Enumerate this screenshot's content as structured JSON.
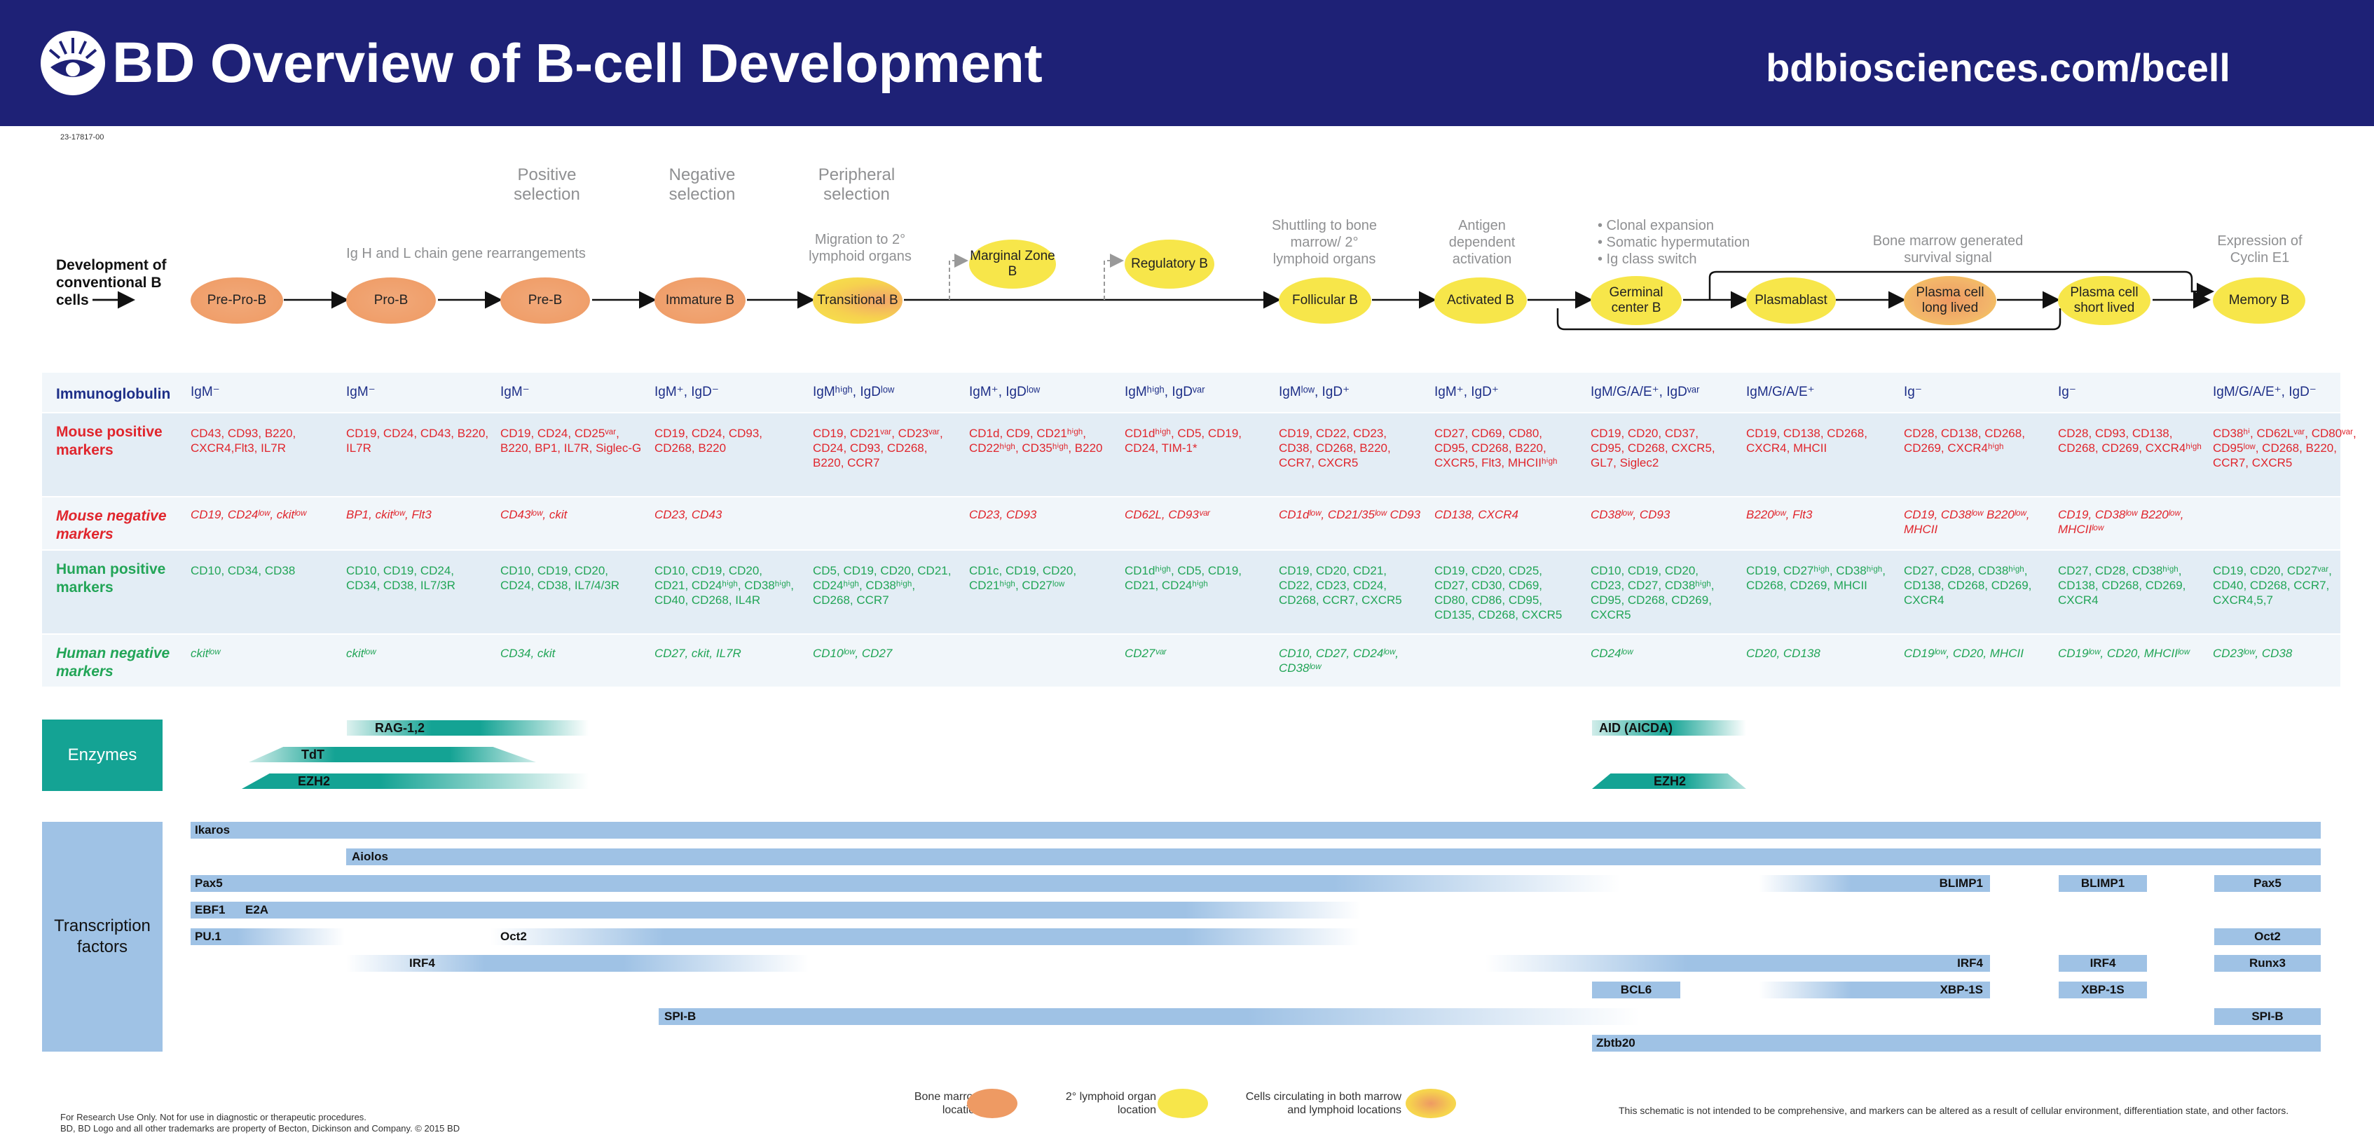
{
  "header": {
    "logo_text": "BD",
    "title": "Overview of B-cell Development",
    "url": "bdbiosciences.com/bcell"
  },
  "doc_code": "23-17817-00",
  "diagram": {
    "dev_label": "Development of conventional B cells",
    "notes": {
      "positive": "Positive selection",
      "negative": "Negative selection",
      "peripheral": "Peripheral selection",
      "ig_rearr": "Ig H and L chain gene rearrangements",
      "migration": "Migration to 2° lymphoid organs",
      "shuttling": "Shuttling to bone marrow/ 2° lymphoid organs",
      "antigen": "Antigen dependent activation",
      "germinal_1": "• Clonal expansion",
      "germinal_2": "• Somatic hypermutation",
      "germinal_3": "• Ig class switch",
      "bm_survival": "Bone marrow generated survival signal",
      "cyclin": "Expression of Cyclin E1"
    },
    "nodes": {
      "prepro": "Pre-Pro-B",
      "pro": "Pro-B",
      "pre": "Pre-B",
      "immature": "Immature B",
      "transitional": "Transitional B",
      "marginal": "Marginal Zone B",
      "regulatory": "Regulatory B",
      "follicular": "Follicular B",
      "activated": "Activated B",
      "germinal": "Germinal center B",
      "plasmablast": "Plasmablast",
      "pc_long": "Plasma cell long lived",
      "pc_short": "Plasma cell short lived",
      "memory": "Memory B"
    }
  },
  "table": {
    "row_labels": {
      "ig": "Immunoglobulin",
      "mouse_pos": "Mouse positive markers",
      "mouse_neg": "Mouse negative markers",
      "human_pos": "Human positive markers",
      "human_neg": "Human negative markers"
    },
    "ig": [
      "IgM⁻",
      "IgM⁻",
      "IgM⁻",
      "IgM⁺, IgD⁻",
      "IgMʰⁱᵍʰ, IgDˡᵒʷ",
      "IgM⁺, IgDˡᵒʷ",
      "IgMʰⁱᵍʰ, IgDᵛᵃʳ",
      "IgMˡᵒʷ, IgD⁺",
      "IgM⁺, IgD⁺",
      "IgM/G/A/E⁺, IgDᵛᵃʳ",
      "IgM/G/A/E⁺",
      "Ig⁻",
      "Ig⁻",
      "IgM/G/A/E⁺, IgD⁻"
    ],
    "mouse_pos": [
      "CD43, CD93, B220, CXCR4,Flt3, IL7R",
      "CD19, CD24, CD43, B220, IL7R",
      "CD19, CD24, CD25ᵛᵃʳ, B220, BP1, IL7R, Siglec-G",
      "CD19, CD24, CD93, CD268, B220",
      "CD19, CD21ᵛᵃʳ, CD23ᵛᵃʳ, CD24, CD93, CD268, B220, CCR7",
      "CD1d, CD9, CD21ʰⁱᵍʰ, CD22ʰⁱᵍʰ, CD35ʰⁱᵍʰ, B220",
      "CD1dʰⁱᵍʰ, CD5, CD19, CD24, TIM-1*",
      "CD19, CD22, CD23, CD38, CD268, B220, CCR7, CXCR5",
      "CD27, CD69, CD80, CD95, CD268, B220, CXCR5, Flt3, MHCIIʰⁱᵍʰ",
      "CD19, CD20, CD37, CD95, CD268, CXCR5, GL7, Siglec2",
      "CD19, CD138, CD268, CXCR4, MHCII",
      "CD28, CD138, CD268, CD269, CXCR4ʰⁱᵍʰ",
      "CD28, CD93, CD138, CD268, CD269, CXCR4ʰⁱᵍʰ",
      "CD38ʰⁱ, CD62Lᵛᵃʳ, CD80ᵛᵃʳ, CD95ˡᵒʷ, CD268, B220, CCR7, CXCR5"
    ],
    "mouse_neg": [
      "CD19, CD24ˡᵒʷ, ckitˡᵒʷ",
      "BP1, ckitˡᵒʷ, Flt3",
      "CD43ˡᵒʷ, ckit",
      "CD23, CD43",
      "",
      "CD23, CD93",
      "CD62L, CD93ᵛᵃʳ",
      "CD1dˡᵒʷ, CD21/35ˡᵒʷ CD93",
      "CD138, CXCR4",
      "CD38ˡᵒʷ, CD93",
      "B220ˡᵒʷ, Flt3",
      "CD19, CD38ˡᵒʷ B220ˡᵒʷ, MHCII",
      "CD19, CD38ˡᵒʷ B220ˡᵒʷ, MHCIIˡᵒʷ",
      ""
    ],
    "human_pos": [
      "CD10, CD34, CD38",
      "CD10, CD19, CD24, CD34, CD38, IL7/3R",
      "CD10, CD19, CD20, CD24, CD38, IL7/4/3R",
      "CD10, CD19, CD20, CD21, CD24ʰⁱᵍʰ, CD38ʰⁱᵍʰ, CD40, CD268, IL4R",
      "CD5, CD19, CD20, CD21, CD24ʰⁱᵍʰ, CD38ʰⁱᵍʰ, CD268, CCR7",
      "CD1c, CD19, CD20, CD21ʰⁱᵍʰ, CD27ˡᵒʷ",
      "CD1dʰⁱᵍʰ, CD5, CD19, CD21, CD24ʰⁱᵍʰ",
      "CD19, CD20, CD21, CD22, CD23, CD24, CD268, CCR7, CXCR5",
      "CD19, CD20, CD25, CD27, CD30, CD69, CD80, CD86, CD95, CD135, CD268, CXCR5",
      "CD10, CD19, CD20, CD23, CD27, CD38ʰⁱᵍʰ, CD95, CD268, CD269, CXCR5",
      "CD19, CD27ʰⁱᵍʰ, CD38ʰⁱᵍʰ, CD268, CD269, MHCII",
      "CD27, CD28, CD38ʰⁱᵍʰ, CD138, CD268, CD269, CXCR4",
      "CD27, CD28, CD38ʰⁱᵍʰ, CD138, CD268, CD269, CXCR4",
      "CD19, CD20, CD27ᵛᵃʳ, CD40, CD268, CCR7, CXCR4,5,7"
    ],
    "human_neg": [
      "ckitˡᵒʷ",
      "ckitˡᵒʷ",
      "CD34, ckit",
      "CD27, ckit, IL7R",
      "CD10ˡᵒʷ, CD27",
      "",
      "CD27ᵛᵃʳ",
      "CD10, CD27, CD24ˡᵒʷ, CD38ˡᵒʷ",
      "",
      "CD24ˡᵒʷ",
      "CD20, CD138",
      "CD19ˡᵒʷ, CD20, MHCII",
      "CD19ˡᵒʷ, CD20, MHCIIˡᵒʷ",
      "CD23ˡᵒʷ, CD38"
    ]
  },
  "enzymes": {
    "label": "Enzymes",
    "rag": "RAG-1,2",
    "tdt": "TdT",
    "ezh2": "EZH2",
    "aid": "AID (AICDA)",
    "ezh2_b": "EZH2"
  },
  "tf": {
    "label": "Transcription factors",
    "ikaros": "Ikaros",
    "aiolos": "Aiolos",
    "pax5": "Pax5",
    "blimp1": "BLIMP1",
    "blimp1_b": "BLIMP1",
    "pax5_b": "Pax5",
    "ebf1": "EBF1",
    "e2a": "E2A",
    "oct2_b": "Oct2",
    "pu1": "PU.1",
    "oct2": "Oct2",
    "irf4": "IRF4",
    "irf4_b": "IRF4",
    "irf4_c": "IRF4",
    "runx3": "Runx3",
    "bcl6": "BCL6",
    "xbp": "XBP-1S",
    "xbp_b": "XBP-1S",
    "spib": "SPI-B",
    "spib_b": "SPI-B",
    "zbtb20": "Zbtb20"
  },
  "legend": {
    "bm": "Bone marrow location",
    "ly": "2° lymphoid organ location",
    "mx": "Cells circulating in both marrow and lymphoid locations"
  },
  "footer": {
    "line1": "For Research Use Only. Not for use in diagnostic or therapeutic procedures.",
    "line2": "BD, BD Logo and all other trademarks are property of Becton, Dickinson and Company. © 2015 BD",
    "disclaimer": "This schematic is not intended to be comprehensive, and markers can be altered as a result of cellular environment, differentiation state, and other factors."
  },
  "colors": {
    "header_bg": "#1e2176",
    "bone_marrow": "#ee9a63",
    "lymphoid": "#f7e64a",
    "mouse_marker": "#e0262d",
    "human_marker": "#22a557",
    "tf_bar": "#9fc2e5",
    "enzyme": "#14a394"
  }
}
